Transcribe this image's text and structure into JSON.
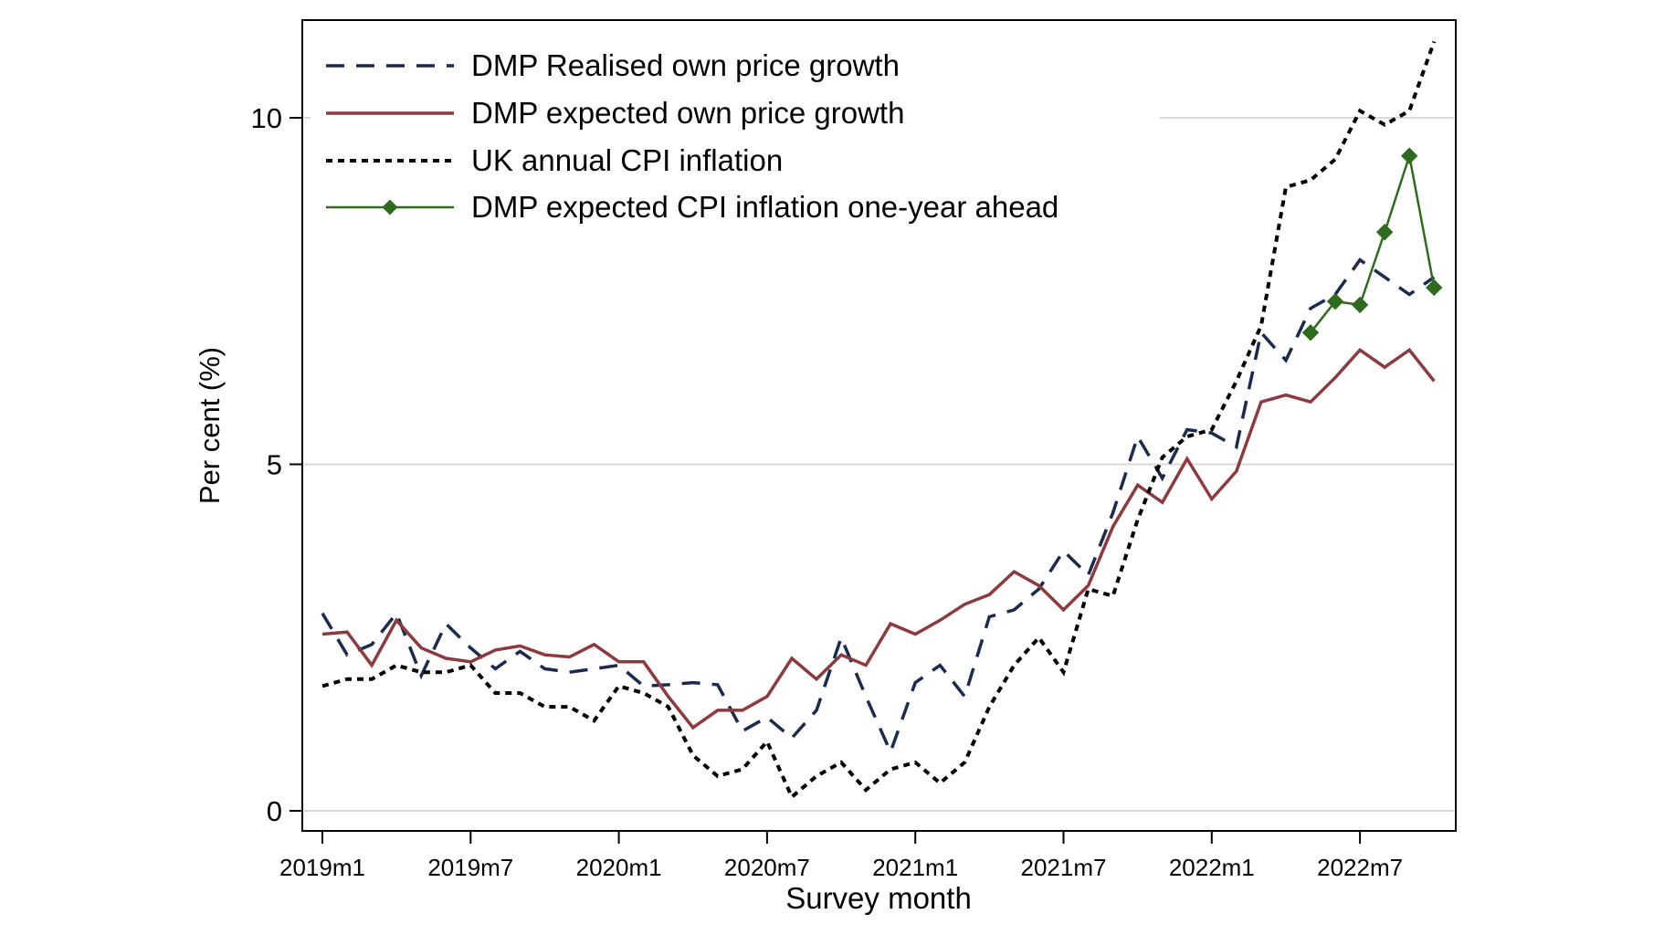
{
  "chart_data": {
    "type": "line",
    "title": "",
    "xlabel": "Survey month",
    "ylabel": "Per cent (%)",
    "ylim": [
      -0.25,
      11.45
    ],
    "xlim": [
      0,
      45
    ],
    "yticks": [
      0,
      5,
      10
    ],
    "ytick_labels": [
      "0",
      "5",
      "10"
    ],
    "xticks": [
      0,
      6,
      12,
      18,
      24,
      30,
      36,
      42
    ],
    "xtick_labels": [
      "2019m1",
      "2019m7",
      "2020m1",
      "2020m7",
      "2021m1",
      "2021m7",
      "2022m1",
      "2022m7"
    ],
    "grid": "horizontal",
    "legend_position": "top-left",
    "x": [
      0,
      1,
      2,
      3,
      4,
      5,
      6,
      7,
      8,
      9,
      10,
      11,
      12,
      13,
      14,
      15,
      16,
      17,
      18,
      19,
      20,
      21,
      22,
      23,
      24,
      25,
      26,
      27,
      28,
      29,
      30,
      31,
      32,
      33,
      34,
      35,
      36,
      37,
      38,
      39,
      40,
      41,
      42,
      43,
      44,
      45
    ],
    "series": [
      {
        "name": "DMP Realised own price growth",
        "color": "#1b2a4f",
        "style": "dashed",
        "values": [
          2.85,
          2.25,
          2.4,
          2.85,
          1.95,
          2.7,
          2.35,
          2.05,
          2.3,
          2.05,
          2.0,
          2.05,
          2.1,
          1.8,
          1.82,
          1.85,
          1.82,
          1.15,
          1.35,
          1.05,
          1.45,
          2.5,
          1.65,
          0.85,
          1.85,
          2.1,
          1.65,
          2.8,
          2.9,
          3.2,
          3.75,
          3.4,
          4.3,
          5.4,
          4.8,
          5.5,
          5.45,
          5.25,
          6.9,
          6.5,
          7.25,
          7.45,
          7.95,
          7.7,
          7.45,
          7.7
        ]
      },
      {
        "name": "DMP expected own price growth",
        "color": "#8b3a3e",
        "style": "solid",
        "values": [
          2.55,
          2.58,
          2.1,
          2.75,
          2.35,
          2.2,
          2.15,
          2.32,
          2.38,
          2.25,
          2.22,
          2.4,
          2.15,
          2.15,
          1.65,
          1.2,
          1.45,
          1.45,
          1.65,
          2.2,
          1.9,
          2.25,
          2.1,
          2.7,
          2.55,
          2.75,
          2.98,
          3.12,
          3.45,
          3.25,
          2.9,
          3.25,
          4.1,
          4.7,
          4.45,
          5.08,
          4.5,
          4.9,
          5.9,
          6.0,
          5.9,
          6.25,
          6.65,
          6.4,
          6.65,
          6.2
        ]
      },
      {
        "name": "UK annual CPI inflation",
        "color": "#000000",
        "style": "dotted",
        "values": [
          1.8,
          1.9,
          1.9,
          2.1,
          2.0,
          2.0,
          2.1,
          1.7,
          1.7,
          1.5,
          1.5,
          1.3,
          1.8,
          1.7,
          1.5,
          0.8,
          0.5,
          0.6,
          1.0,
          0.2,
          0.5,
          0.7,
          0.3,
          0.6,
          0.7,
          0.4,
          0.7,
          1.5,
          2.1,
          2.5,
          2.0,
          3.2,
          3.1,
          4.2,
          5.1,
          5.4,
          5.5,
          6.2,
          7.0,
          9.0,
          9.1,
          9.4,
          10.1,
          9.9,
          10.1,
          11.1
        ]
      },
      {
        "name": "DMP expected CPI inflation one-year ahead",
        "color": "#2e6b1f",
        "style": "solid-diamond",
        "x": [
          40,
          41,
          42,
          43,
          44,
          45
        ],
        "values": [
          6.9,
          7.35,
          7.3,
          8.35,
          9.45,
          7.55
        ]
      }
    ]
  }
}
